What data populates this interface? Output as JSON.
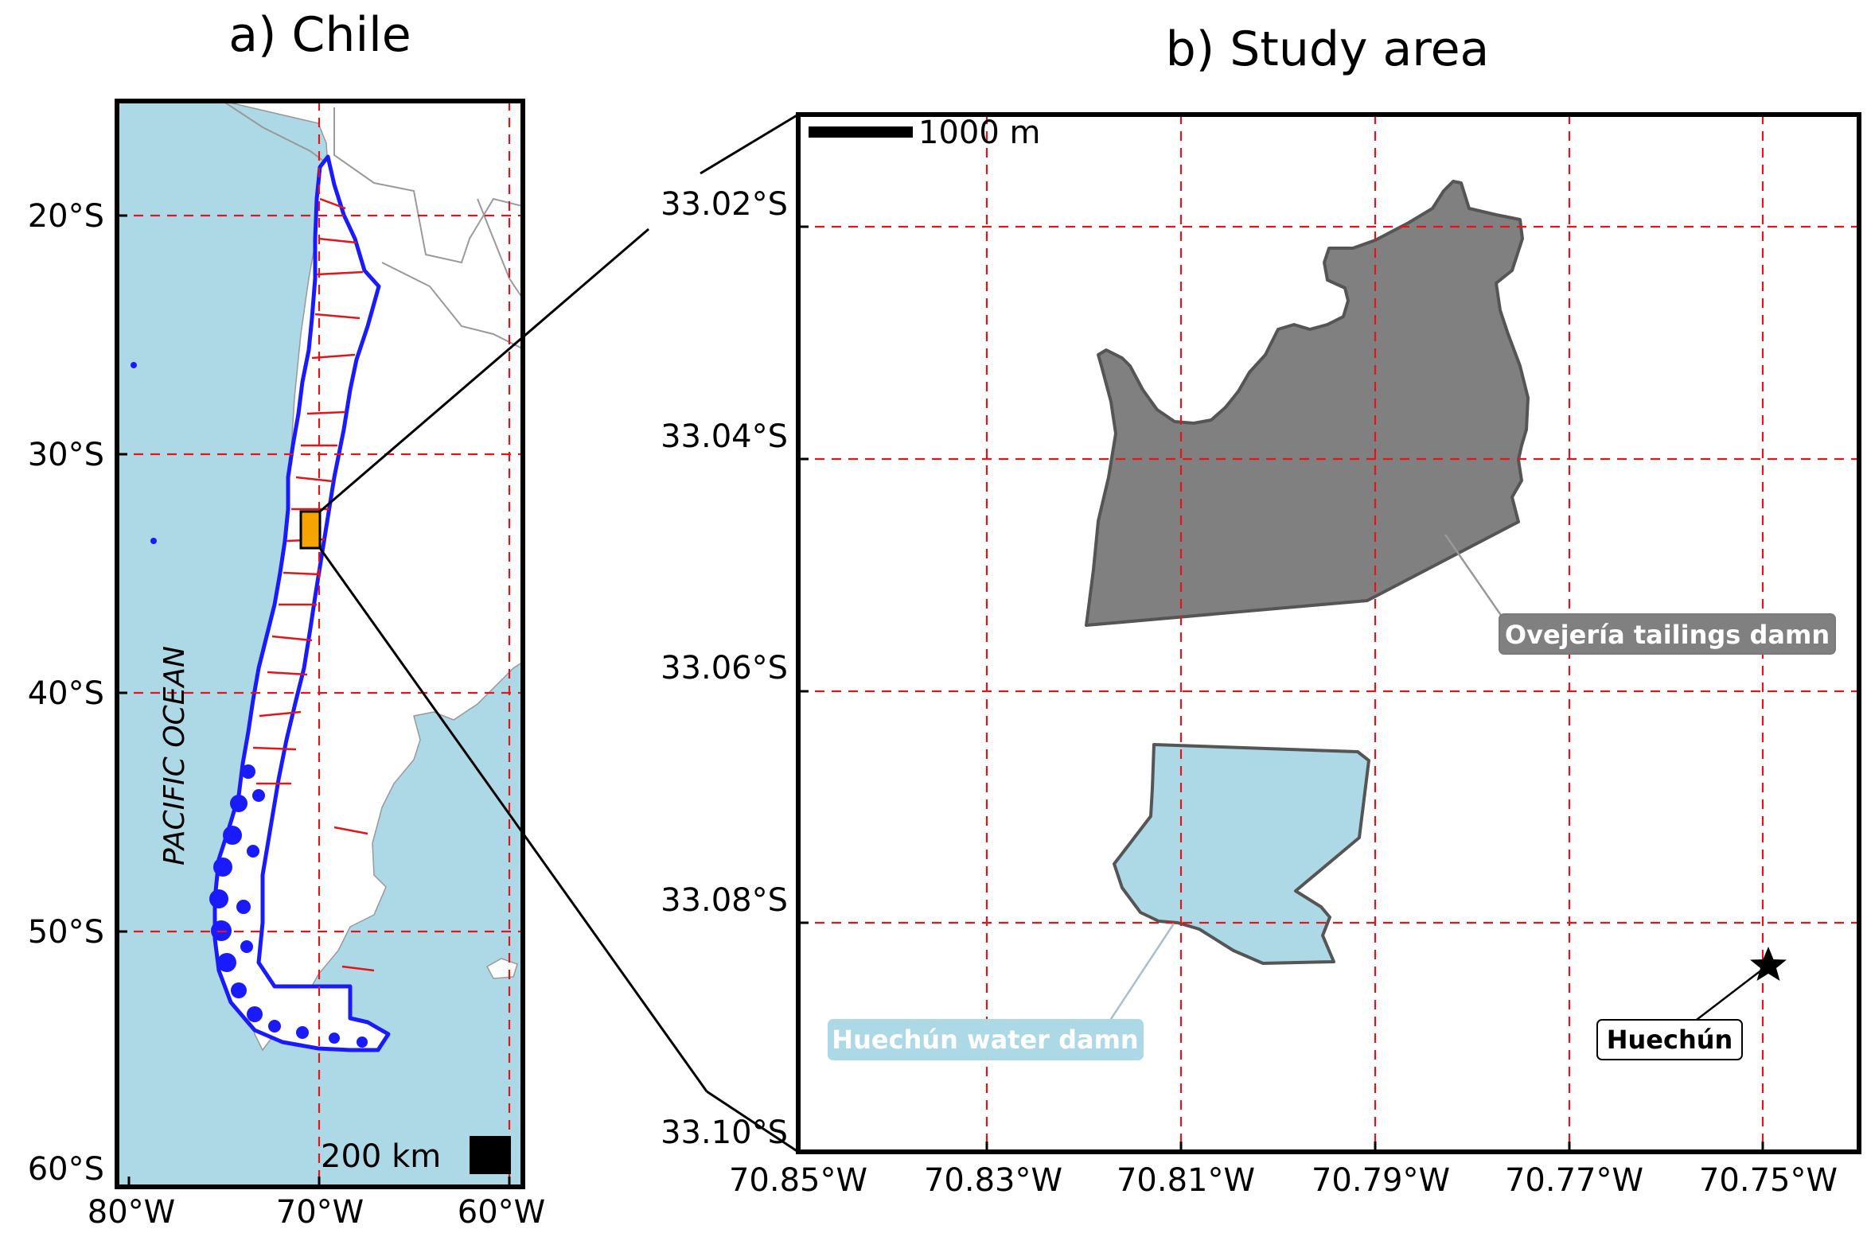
{
  "panel_a": {
    "title": "a) Chile",
    "lat_ticks": [
      "20°S",
      "30°S",
      "40°S",
      "50°S",
      "60°S"
    ],
    "lon_ticks": [
      "80°W",
      "70°W",
      "60°W"
    ],
    "ocean_label": "PACIFIC OCEAN",
    "scale_bar_label": "200 km",
    "colors": {
      "ocean": "#add8e6",
      "land": "#ffffff",
      "country_outline": "#1a1aff",
      "region_boundaries": "#e3151a",
      "study_area_box": "#f5a400",
      "gridlines": "#e3151a"
    }
  },
  "panel_b": {
    "title": "b) Study area",
    "lat_ticks": [
      "33.02°S",
      "33.04°S",
      "33.06°S",
      "33.08°S",
      "33.10°S"
    ],
    "lon_ticks": [
      "70.85°W",
      "70.83°W",
      "70.81°W",
      "70.79°W",
      "70.77°W",
      "70.75°W"
    ],
    "scale_bar_label": "1000 m",
    "features": {
      "tailings_dam": {
        "label": "Ovejería tailings damn",
        "fill": "#808080",
        "stroke": "#555555"
      },
      "water_dam": {
        "label": "Huechún water damn",
        "fill": "#add8e6",
        "stroke": "#555555"
      },
      "town": {
        "label": "Huechún",
        "marker": "star-icon"
      }
    },
    "colors": {
      "gridlines": "#e3151a"
    }
  }
}
